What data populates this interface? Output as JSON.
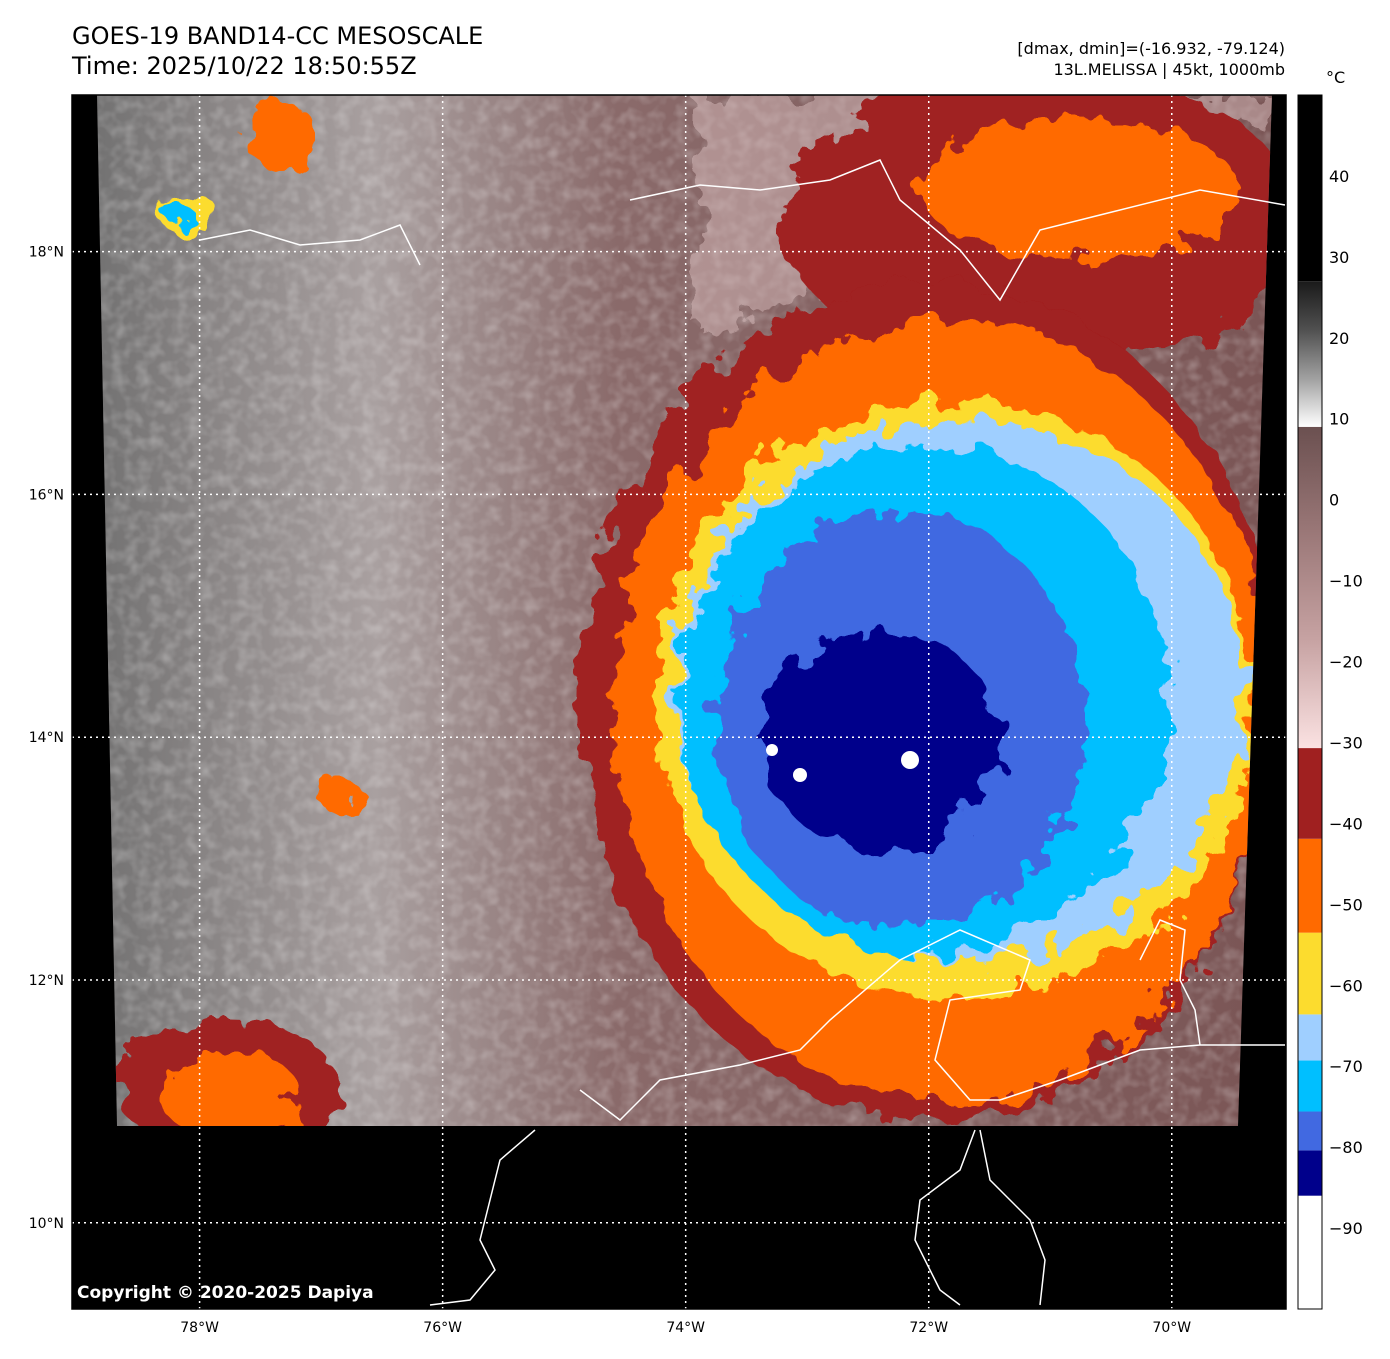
{
  "header": {
    "title": "GOES-19 BAND14-CC MESOSCALE",
    "time": "Time: 2025/10/22 18:50:55Z",
    "range": "[dmax, dmin]=(-16.932, -79.124)",
    "storm": "13L.MELISSA | 45kt, 1000mb"
  },
  "copyright": "Copyright © 2020-2025 Dapiya",
  "map": {
    "lon_range": [
      -79.05,
      -69.06
    ],
    "lat_range": [
      9.29,
      19.29
    ],
    "lon_ticks": [
      {
        "v": -78,
        "label": "78°W"
      },
      {
        "v": -76,
        "label": "76°W"
      },
      {
        "v": -74,
        "label": "74°W"
      },
      {
        "v": -72,
        "label": "72°W"
      },
      {
        "v": -70,
        "label": "70°W"
      }
    ],
    "lat_ticks": [
      {
        "v": 18,
        "label": "18°N"
      },
      {
        "v": 16,
        "label": "16°N"
      },
      {
        "v": 14,
        "label": "14°N"
      },
      {
        "v": 12,
        "label": "12°N"
      },
      {
        "v": 10,
        "label": "10°N"
      }
    ]
  },
  "colorbar": {
    "unit": "°C",
    "range": [
      -100,
      50
    ],
    "ticks": [
      40,
      30,
      20,
      10,
      0,
      -10,
      -20,
      -30,
      -40,
      -50,
      -60,
      -70,
      -80,
      -90
    ],
    "tick_labels": [
      "40",
      "30",
      "20",
      "10",
      "0",
      "−10",
      "−20",
      "−30",
      "−40",
      "−50",
      "−60",
      "−70",
      "−80",
      "−90"
    ],
    "segments": [
      {
        "from": -100,
        "to": -86,
        "color": "#ffffff"
      },
      {
        "from": -86,
        "to": -80.4,
        "color": "#00008b"
      },
      {
        "from": -80.4,
        "to": -75.6,
        "color": "#4169e1"
      },
      {
        "from": -75.6,
        "to": -69.3,
        "color": "#00bfff"
      },
      {
        "from": -69.3,
        "to": -63.6,
        "color": "#9fcfff"
      },
      {
        "from": -63.6,
        "to": -53.5,
        "color": "#fcdc2e"
      },
      {
        "from": -53.5,
        "to": -41.9,
        "color": "#ff6a00"
      },
      {
        "from": -41.9,
        "to": -30.7,
        "color": "#a02020"
      }
    ],
    "gradients": [
      {
        "from": -30.7,
        "to": 9,
        "colors": [
          "#fbe2e2",
          "#c7a3a3",
          "#9b7878",
          "#6b5050"
        ]
      },
      {
        "from": 9,
        "to": 27,
        "colors": [
          "#ffffff",
          "#a0a0a0",
          "#505050",
          "#1a1a1a"
        ]
      },
      {
        "from": 27,
        "to": 50,
        "colors": [
          "#000000",
          "#000000"
        ]
      }
    ]
  }
}
